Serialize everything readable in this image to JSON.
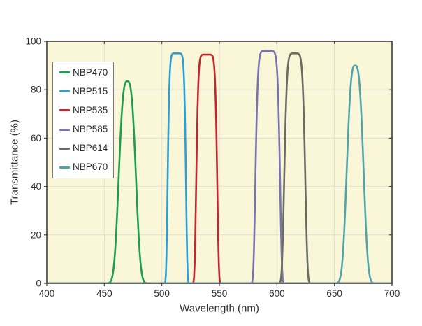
{
  "chart_data": {
    "type": "line",
    "title": "",
    "xlabel": "Wavelength (nm)",
    "ylabel": "Transmittance (%)",
    "xlim": [
      400,
      700
    ],
    "ylim": [
      0,
      100
    ],
    "x_ticks": [
      400,
      450,
      500,
      550,
      600,
      650,
      700
    ],
    "y_ticks": [
      0,
      20,
      40,
      60,
      80,
      100
    ],
    "grid": true,
    "legend_position": "top-left",
    "plot_bg_color": "#FAF7D9",
    "grid_color": "#DFDED2",
    "axis_color": "#3E3E3E",
    "tick_label_color": "#2E2E2E",
    "line_width": 2.6,
    "series": [
      {
        "name": "NBP470",
        "color": "#1E9E50",
        "center_nm": 470,
        "peak_pct": 83.5,
        "fwhm_nm": 15.4,
        "base_nm": [
          454,
          486
        ],
        "shape": "rounded",
        "profile": {
          "sigma": 6.9,
          "exponent": 1.5
        }
      },
      {
        "name": "NBP515",
        "color": "#2B9FD6",
        "center_nm": 513,
        "peak_pct": 95.0,
        "fwhm_nm": 15.6,
        "base_nm": [
          503,
          523
        ],
        "shape": "flat-top",
        "profile": {
          "sigma": 7.5,
          "exponent": 4
        }
      },
      {
        "name": "NBP535",
        "color": "#C1272D",
        "center_nm": 539,
        "peak_pct": 94.5,
        "fwhm_nm": 17.9,
        "base_nm": [
          528,
          551
        ],
        "shape": "flat-top",
        "profile": {
          "sigma": 8.6,
          "exponent": 4
        }
      },
      {
        "name": "NBP585",
        "color": "#7A73B1",
        "center_nm": 592,
        "peak_pct": 96.0,
        "fwhm_nm": 21.0,
        "base_nm": [
          578,
          606
        ],
        "shape": "flat-top",
        "profile": {
          "sigma": 10.1,
          "exponent": 4
        }
      },
      {
        "name": "NBP614",
        "color": "#6A6B63",
        "center_nm": 615.5,
        "peak_pct": 95.0,
        "fwhm_nm": 17.9,
        "base_nm": [
          603,
          628
        ],
        "shape": "flat-top",
        "profile": {
          "sigma": 8.5,
          "exponent": 3
        }
      },
      {
        "name": "NBP670",
        "color": "#4FA5AB",
        "center_nm": 668,
        "peak_pct": 90.0,
        "fwhm_nm": 14.9,
        "base_nm": [
          655,
          681
        ],
        "shape": "rounded",
        "profile": {
          "sigma": 6.7,
          "exponent": 1.5
        }
      }
    ]
  }
}
